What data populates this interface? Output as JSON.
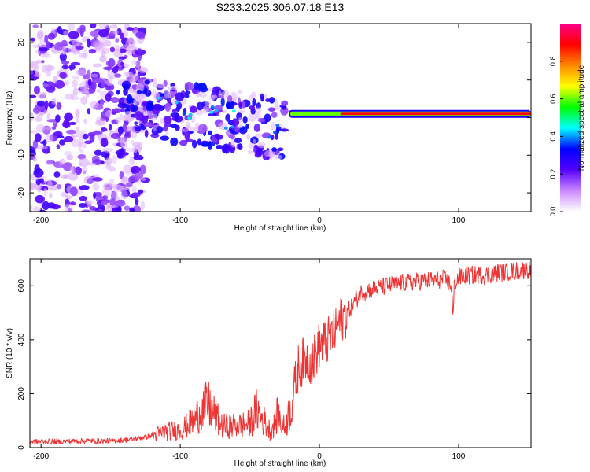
{
  "title": "S233.2025.306.07.18.E13",
  "colors": {
    "snr_line": "#ee3333",
    "axis": "#000000",
    "background": "#ffffff"
  },
  "chart_data": [
    {
      "type": "heatmap",
      "xlabel": "Height of straight line (km)",
      "ylabel": "Frequency (Hz)",
      "xlim": [
        -208,
        152
      ],
      "ylim": [
        -25,
        25
      ],
      "xticks": [
        -200,
        -100,
        0,
        100
      ],
      "yticks": [
        -20,
        -10,
        0,
        10,
        20
      ],
      "colorbar": {
        "label": "Normalized spectral amplitude",
        "range": [
          0,
          1
        ],
        "ticks": [
          0.0,
          0.2,
          0.4,
          0.6,
          0.8
        ],
        "tick_labels": [
          "0.0",
          "0.2",
          "0.4",
          "0.6",
          "0.8"
        ],
        "colormap": [
          "#ffffff",
          "#cc88ff",
          "#5500ff",
          "#0000ff",
          "#00ffff",
          "#00ff00",
          "#ffff00",
          "#ff8800",
          "#ff0000",
          "#ff0088"
        ]
      },
      "features": {
        "noise_region_km": [
          -208,
          -125
        ],
        "scatter_region_km": [
          -145,
          -25
        ],
        "steady_tone_start_km": -22,
        "steady_tone_frequency_hz": 1,
        "steady_tone_amplitude": 0.9
      }
    },
    {
      "type": "line",
      "xlabel": "Height of straight line (km)",
      "ylabel": "SNR (10 * v/v)",
      "xlim": [
        -208,
        152
      ],
      "ylim": [
        0,
        700
      ],
      "xticks": [
        -200,
        -100,
        0,
        100
      ],
      "yticks": [
        0,
        200,
        400,
        600
      ],
      "series": [
        {
          "name": "SNR",
          "x": [
            -208,
            -190,
            -170,
            -150,
            -135,
            -120,
            -110,
            -100,
            -90,
            -85,
            -80,
            -75,
            -70,
            -60,
            -50,
            -45,
            -40,
            -35,
            -30,
            -25,
            -20,
            -15,
            -10,
            -5,
            0,
            5,
            10,
            15,
            20,
            25,
            30,
            35,
            40,
            50,
            60,
            70,
            80,
            90,
            95,
            96,
            97,
            100,
            110,
            120,
            130,
            140,
            152
          ],
          "values": [
            22,
            22,
            25,
            25,
            30,
            45,
            60,
            65,
            100,
            140,
            160,
            120,
            80,
            80,
            90,
            140,
            100,
            60,
            120,
            70,
            160,
            300,
            330,
            320,
            380,
            390,
            420,
            470,
            500,
            540,
            575,
            585,
            590,
            600,
            610,
            615,
            620,
            625,
            600,
            470,
            610,
            630,
            640,
            640,
            650,
            655,
            660
          ]
        }
      ]
    }
  ]
}
